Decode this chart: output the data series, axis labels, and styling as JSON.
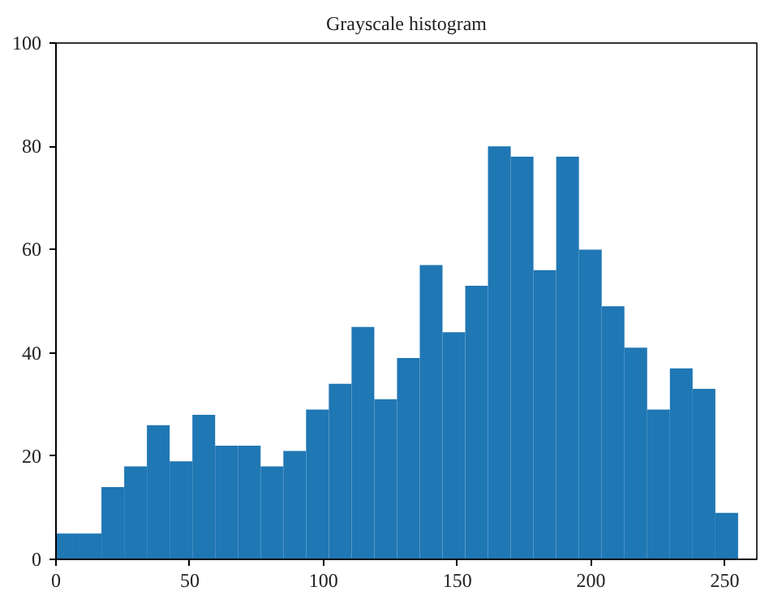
{
  "chart_data": {
    "type": "histogram",
    "title": "Grayscale histogram",
    "bins": [
      0,
      8.5,
      17,
      25.5,
      34,
      42.5,
      51,
      59.5,
      68,
      76.5,
      85,
      93.5,
      102,
      110.5,
      119,
      127.5,
      136,
      144.5,
      153,
      161.5,
      170,
      178.5,
      187,
      195.5,
      204,
      212.5,
      221,
      229.5,
      238,
      246.5,
      255
    ],
    "values": [
      5,
      5,
      14,
      18,
      26,
      19,
      28,
      22,
      22,
      18,
      21,
      29,
      34,
      45,
      31,
      39,
      57,
      44,
      53,
      80,
      78,
      56,
      78,
      60,
      49,
      41,
      29,
      37,
      33,
      9
    ],
    "color": "#1f77b4",
    "xlim": [
      0,
      262
    ],
    "ylim": [
      0,
      100
    ],
    "xticks": [
      0,
      50,
      100,
      150,
      200,
      250
    ],
    "yticks": [
      0,
      20,
      40,
      60,
      80,
      100
    ],
    "grid": false
  }
}
